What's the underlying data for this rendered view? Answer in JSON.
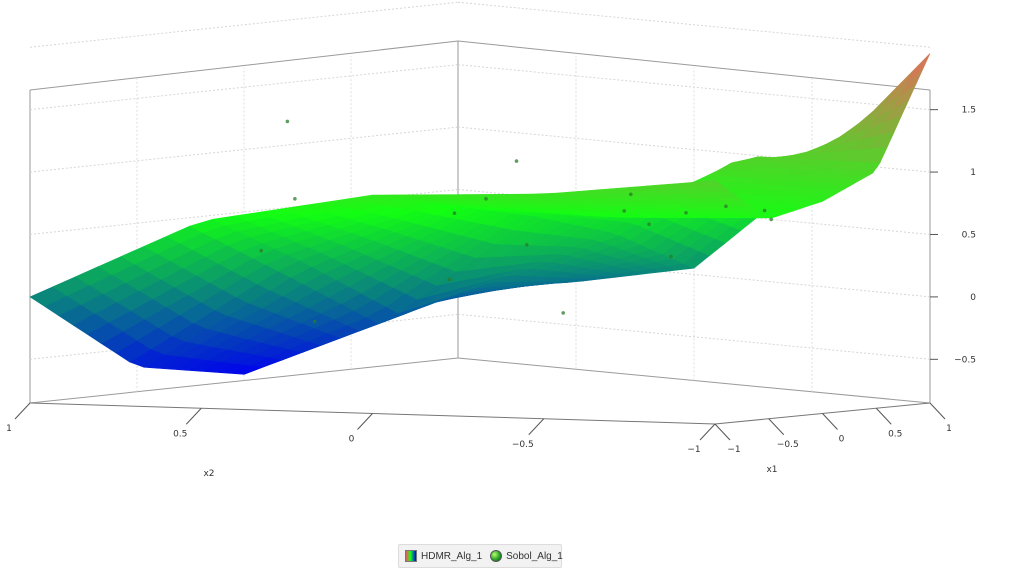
{
  "chart_data": {
    "type": "surface3d",
    "title": "",
    "axes": {
      "x1": {
        "label": "x1",
        "ticks": [
          "−1",
          "−0.5",
          "0",
          "0.5",
          "1"
        ],
        "range": [
          -1,
          1
        ]
      },
      "x2": {
        "label": "x2",
        "ticks": [
          "1",
          "0.5",
          "0",
          "−0.5",
          "−1"
        ],
        "range": [
          -1,
          1
        ]
      },
      "z": {
        "label": "",
        "ticks": [
          "−0.5",
          "0",
          "0.5",
          "1",
          "1.5"
        ],
        "range": [
          -0.85,
          2.05
        ]
      }
    },
    "grid": true,
    "colormap": [
      "#e86a5e",
      "#12ff12",
      "#0000f0"
    ],
    "legend": {
      "position": "bottom-center",
      "items": [
        {
          "label": "HDMR_Alg_1",
          "kind": "surface"
        },
        {
          "label": "Sobol_Alg_1",
          "kind": "points"
        }
      ]
    },
    "surface_grid": {
      "x1": [
        -1,
        -0.5,
        0,
        0.5,
        1
      ],
      "x2": [
        -1,
        -0.5,
        0,
        0.5,
        1
      ],
      "z": [
        [
          -0.3,
          -0.15,
          0.05,
          0.9,
          1.95
        ],
        [
          -0.5,
          -0.1,
          0.4,
          1.1,
          1.05
        ],
        [
          -0.8,
          -0.3,
          0.6,
          0.8,
          0.85
        ],
        [
          -0.65,
          0.2,
          0.75,
          0.7,
          0.75
        ],
        [
          0.0,
          0.65,
          0.9,
          0.95,
          1.1
        ]
      ]
    },
    "series": [
      {
        "name": "Sobol_Alg_1",
        "points": [
          {
            "x1": -0.7,
            "x2": -0.6,
            "z": -0.1
          },
          {
            "x1": -0.4,
            "x2": -0.8,
            "z": -0.35
          },
          {
            "x1": -0.2,
            "x2": -0.3,
            "z": 0.3
          },
          {
            "x1": 0.1,
            "x2": -0.7,
            "z": 0.2
          },
          {
            "x1": 0.3,
            "x2": -0.2,
            "z": 0.55
          },
          {
            "x1": 0.6,
            "x2": -0.5,
            "z": 0.6
          },
          {
            "x1": 0.8,
            "x2": 0.0,
            "z": 0.75
          },
          {
            "x1": -0.8,
            "x2": 0.2,
            "z": 0.25
          },
          {
            "x1": -0.5,
            "x2": 0.5,
            "z": 0.75
          },
          {
            "x1": -0.1,
            "x2": 0.3,
            "z": 0.65
          },
          {
            "x1": 0.2,
            "x2": 0.7,
            "z": 0.85
          },
          {
            "x1": 0.5,
            "x2": 0.4,
            "z": 0.75
          },
          {
            "x1": 0.9,
            "x2": 0.6,
            "z": 0.85
          },
          {
            "x1": -0.3,
            "x2": 0.9,
            "z": 1.45
          },
          {
            "x1": 0.4,
            "x2": 0.95,
            "z": 1.2
          },
          {
            "x1": -0.9,
            "x2": -0.2,
            "z": -0.4
          },
          {
            "x1": 0.7,
            "x2": 0.85,
            "z": 0.95
          },
          {
            "x1": 0.0,
            "x2": -0.95,
            "z": 0.5
          }
        ]
      }
    ]
  }
}
